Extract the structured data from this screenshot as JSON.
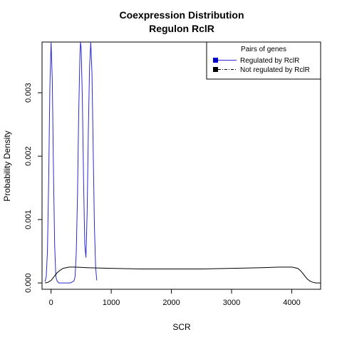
{
  "chart_data": {
    "type": "line",
    "title": "Coexpression Distribution",
    "subtitle": "Regulon RclR",
    "xlabel": "SCR",
    "ylabel": "Probability Density",
    "xlim": [
      -150,
      4480
    ],
    "ylim": [
      -0.0001,
      0.0038
    ],
    "x_ticks": [
      0,
      1000,
      2000,
      3000,
      4000
    ],
    "x_tick_labels": [
      "0",
      "1000",
      "2000",
      "3000",
      "4000"
    ],
    "y_ticks": [
      0.0,
      0.001,
      0.002,
      0.003
    ],
    "y_tick_labels": [
      "0.000",
      "0.001",
      "0.002",
      "0.003"
    ],
    "grid": false,
    "legend": {
      "title": "Pairs of genes",
      "placement": "top-right",
      "entries": [
        {
          "label": "Regulated by  RclR",
          "color": "#0000cc"
        },
        {
          "label": "Not regulated by  RclR",
          "color": "#000000"
        }
      ]
    },
    "series": [
      {
        "name": "Regulated by  RclR",
        "color": "#2a2ad0",
        "x": [
          -100,
          -80,
          -60,
          -40,
          -20,
          0,
          20,
          40,
          60,
          80,
          100,
          130,
          160,
          200,
          260,
          320,
          380,
          400,
          420,
          440,
          460,
          480,
          490,
          500,
          520,
          540,
          560,
          580,
          600,
          620,
          640,
          660,
          680,
          700,
          720,
          740,
          760
        ],
        "y": [
          2e-05,
          0.0001,
          0.0005,
          0.0016,
          0.0031,
          0.0038,
          0.0032,
          0.0018,
          0.0006,
          0.0001,
          3e-05,
          0.0,
          0.0,
          0.0,
          0.0,
          0.0,
          3e-05,
          0.0001,
          0.0005,
          0.0014,
          0.0027,
          0.0036,
          0.0038,
          0.0037,
          0.0029,
          0.0016,
          0.0006,
          0.0004,
          0.0011,
          0.0024,
          0.0034,
          0.0038,
          0.0033,
          0.0021,
          0.0009,
          0.00025,
          4e-05
        ]
      },
      {
        "name": "Not regulated by  RclR",
        "color": "#000000",
        "x": [
          -100,
          -50,
          0,
          50,
          100,
          150,
          200,
          300,
          400,
          600,
          1000,
          1500,
          2000,
          2500,
          3000,
          3500,
          3800,
          4000,
          4100,
          4150,
          4200,
          4250,
          4300,
          4350,
          4400,
          4480
        ],
        "y": [
          0.0,
          1e-05,
          4e-05,
          0.0001,
          0.00016,
          0.0002,
          0.00023,
          0.00025,
          0.00025,
          0.00024,
          0.00023,
          0.00022,
          0.00022,
          0.00022,
          0.00023,
          0.00024,
          0.00025,
          0.00025,
          0.00023,
          0.00019,
          0.00013,
          7e-05,
          3e-05,
          1e-05,
          0.0,
          0.0
        ]
      }
    ]
  }
}
